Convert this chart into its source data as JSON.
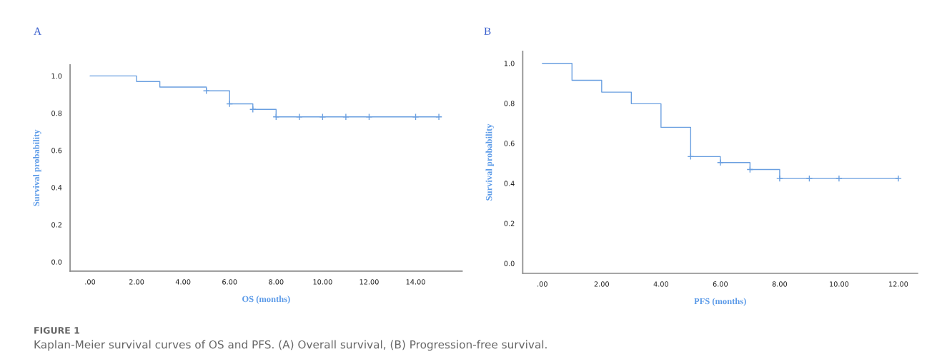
{
  "chart_data": [
    {
      "type": "step",
      "title": "A",
      "xlabel": "OS (months)",
      "ylabel": "Survival probability",
      "xlim": [
        -0.86,
        16
      ],
      "ylim": [
        -0.05,
        1.06
      ],
      "xticks": [
        {
          "value": 0,
          "label": ".00"
        },
        {
          "value": 2,
          "label": "2.00"
        },
        {
          "value": 4,
          "label": "4.00"
        },
        {
          "value": 6,
          "label": "6.00"
        },
        {
          "value": 8,
          "label": "8.00"
        },
        {
          "value": 10,
          "label": "10.00"
        },
        {
          "value": 12,
          "label": "12.00"
        },
        {
          "value": 14,
          "label": "14.00"
        }
      ],
      "yticks": [
        {
          "value": 0,
          "label": "0.0"
        },
        {
          "value": 0.2,
          "label": "0.2"
        },
        {
          "value": 0.4,
          "label": "0.4"
        },
        {
          "value": 0.6,
          "label": "0.6"
        },
        {
          "value": 0.8,
          "label": "0.8"
        },
        {
          "value": 1,
          "label": "1.0"
        }
      ],
      "grid": false,
      "legend": false,
      "series": [
        {
          "color": "#6a9fe0",
          "x": [
            0,
            2,
            3,
            5,
            6,
            7,
            8,
            15
          ],
          "values": [
            1.0,
            0.97,
            0.94,
            0.92,
            0.85,
            0.82,
            0.78,
            0.78
          ]
        },
        {
          "type": "scatter",
          "marker": "cross",
          "color": "#6a9fe0",
          "x": [
            5,
            6,
            7,
            8,
            9,
            10,
            11,
            12,
            14,
            15
          ],
          "values": [
            0.92,
            0.85,
            0.82,
            0.78,
            0.78,
            0.78,
            0.78,
            0.78,
            0.78,
            0.78
          ]
        }
      ],
      "annotations": [
        "FIGURE 1",
        "Kaplan-Meier survival curves of OS and PFS. (A) Overall survival, (B) Progression-free survival."
      ]
    },
    {
      "type": "step",
      "title": "B",
      "xlabel": "PFS (months)",
      "ylabel": "Survival probability",
      "xlim": [
        -0.66,
        12.65
      ],
      "ylim": [
        -0.05,
        1.06
      ],
      "xticks": [
        {
          "value": 0,
          "label": ".00"
        },
        {
          "value": 2,
          "label": "2.00"
        },
        {
          "value": 4,
          "label": "4.00"
        },
        {
          "value": 6,
          "label": "6.00"
        },
        {
          "value": 8,
          "label": "8.00"
        },
        {
          "value": 10,
          "label": "10.00"
        },
        {
          "value": 12,
          "label": "12.00"
        }
      ],
      "yticks": [
        {
          "value": 0,
          "label": "0.0"
        },
        {
          "value": 0.2,
          "label": "0.2"
        },
        {
          "value": 0.4,
          "label": "0.4"
        },
        {
          "value": 0.6,
          "label": "0.6"
        },
        {
          "value": 0.8,
          "label": "0.8"
        },
        {
          "value": 1,
          "label": "1.0"
        }
      ],
      "grid": false,
      "legend": false,
      "series": [
        {
          "color": "#6a9fe0",
          "x": [
            0,
            1,
            2,
            3,
            4,
            5,
            6,
            7,
            8,
            12
          ],
          "values": [
            1.0,
            0.915,
            0.856,
            0.798,
            0.68,
            0.534,
            0.504,
            0.469,
            0.424,
            0.424
          ]
        },
        {
          "type": "scatter",
          "marker": "cross",
          "color": "#6a9fe0",
          "x": [
            5,
            6,
            7,
            8,
            9,
            10,
            12
          ],
          "values": [
            0.534,
            0.504,
            0.469,
            0.424,
            0.424,
            0.424,
            0.424
          ]
        }
      ]
    }
  ]
}
